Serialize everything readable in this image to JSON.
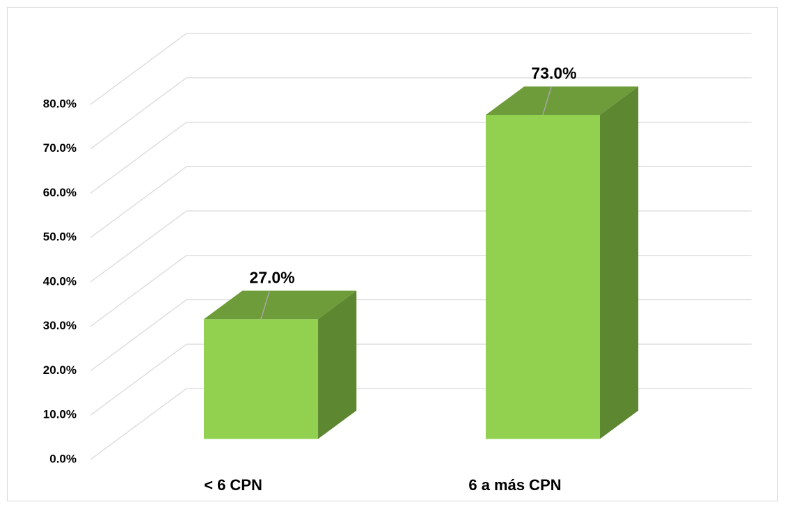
{
  "chart_data": {
    "type": "bar3d",
    "categories": [
      "< 6 CPN",
      "6 a más CPN"
    ],
    "values": [
      27,
      73
    ],
    "value_labels": [
      "27.0%",
      "73.0%"
    ],
    "color": "#92d050",
    "ylim": [
      0,
      80
    ],
    "yticks": [
      {
        "value": 0,
        "label": "0.0%"
      },
      {
        "value": 10,
        "label": "10.0%"
      },
      {
        "value": 20,
        "label": "20.0%"
      },
      {
        "value": 30,
        "label": "30.0%"
      },
      {
        "value": 40,
        "label": "40.0%"
      },
      {
        "value": 50,
        "label": "50.0%"
      },
      {
        "value": 60,
        "label": "60.0%"
      },
      {
        "value": 70,
        "label": "70.0%"
      },
      {
        "value": 80,
        "label": "80.0%"
      }
    ],
    "grid": true
  }
}
